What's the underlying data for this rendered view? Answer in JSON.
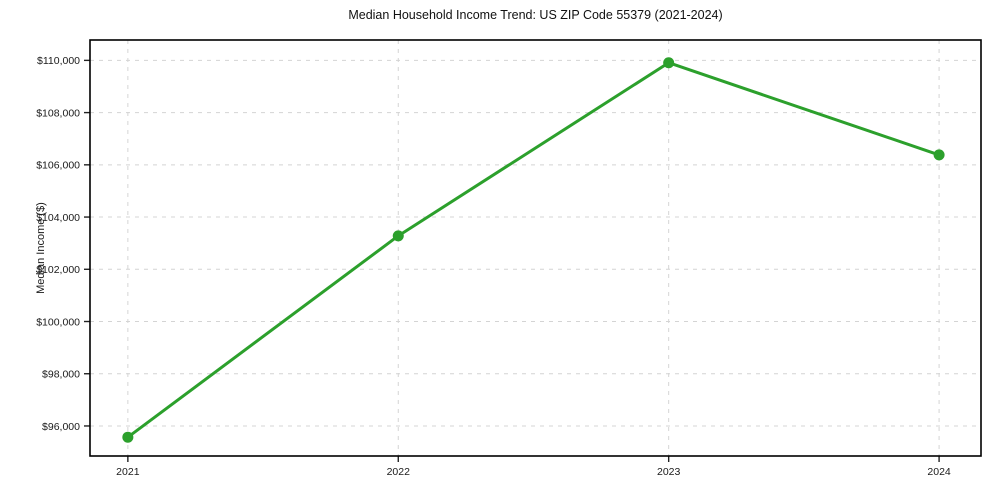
{
  "chart_data": {
    "type": "line",
    "title": "Median Household Income Trend: US ZIP Code 55379 (2021-2024)",
    "xlabel": "",
    "ylabel": "Median Income ($)",
    "x": [
      2021,
      2022,
      2023,
      2024
    ],
    "x_tick_labels": [
      "2021",
      "2022",
      "2023",
      "2024"
    ],
    "series": [
      {
        "name": "Median household income",
        "values": [
          95570,
          103280,
          109910,
          106380
        ],
        "color": "#2ca02c",
        "marker": "circle",
        "marker_radius": 5.5,
        "line_width": 3
      }
    ],
    "y_ticks": [
      96000,
      98000,
      100000,
      102000,
      104000,
      106000,
      108000,
      110000
    ],
    "y_tick_labels": [
      "$96,000",
      "$98,000",
      "$100,000",
      "$102,000",
      "$104,000",
      "$106,000",
      "$108,000",
      "$110,000"
    ],
    "xlim": [
      2020.86,
      2024.155
    ],
    "ylim": [
      94850,
      110780
    ],
    "grid": true,
    "grid_style": "dashed",
    "grid_color": "#d4d4d4",
    "spine_color": "#000000",
    "tick_color": "#222222",
    "text_color": "#1a1a1a",
    "background": "#ffffff",
    "legend": false
  }
}
